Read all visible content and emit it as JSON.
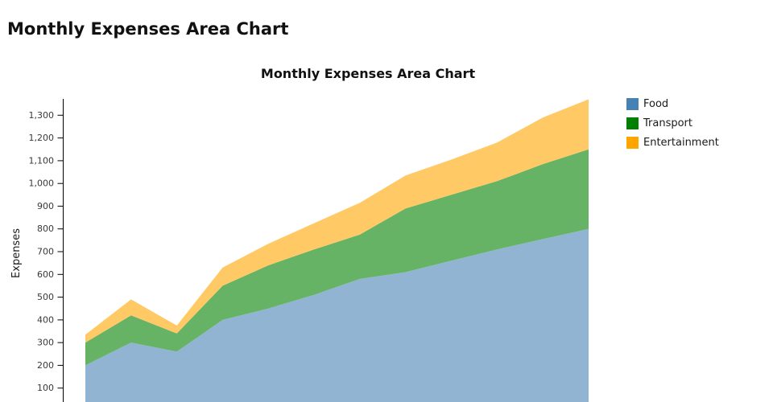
{
  "page": {
    "title": "Monthly Expenses Area Chart"
  },
  "chart": {
    "title": "Monthly Expenses Area Chart",
    "y_axis": {
      "label": "Expenses",
      "tick_labels": [
        "100",
        "200",
        "300",
        "400",
        "500",
        "600",
        "700",
        "800",
        "900",
        "1,000",
        "1,100",
        "1,200",
        "1,300"
      ]
    },
    "legend": [
      {
        "label": "Food",
        "color": "#4682B4"
      },
      {
        "label": "Transport",
        "color": "#008000"
      },
      {
        "label": "Entertainment",
        "color": "#FFA500"
      }
    ]
  },
  "chart_data": {
    "type": "area",
    "stacked": true,
    "title": "Monthly Expenses Area Chart",
    "ylabel": "Expenses",
    "x": [
      1,
      2,
      3,
      4,
      5,
      6,
      7,
      8,
      9,
      10,
      11,
      12
    ],
    "x_axis_labels_visible": false,
    "yticks": [
      100,
      200,
      300,
      400,
      500,
      600,
      700,
      800,
      900,
      1000,
      1100,
      1200,
      1300
    ],
    "ylim": [
      0,
      1400
    ],
    "grid": false,
    "legend_position": "right",
    "series": [
      {
        "name": "Food",
        "color": "#4682B4",
        "fill": "#90B4D2",
        "values": [
          200,
          300,
          260,
          400,
          450,
          510,
          580,
          610,
          660,
          710,
          755,
          800
        ]
      },
      {
        "name": "Transport",
        "color": "#008000",
        "fill": "#66B366",
        "values": [
          100,
          120,
          80,
          150,
          190,
          200,
          195,
          280,
          290,
          300,
          330,
          350
        ]
      },
      {
        "name": "Entertainment",
        "color": "#FFA500",
        "fill": "#FFC966",
        "values": [
          35,
          70,
          35,
          80,
          95,
          115,
          140,
          145,
          155,
          170,
          205,
          220
        ]
      }
    ],
    "stacked_totals": [
      335,
      490,
      375,
      630,
      735,
      825,
      915,
      1035,
      1105,
      1180,
      1290,
      1370
    ]
  }
}
